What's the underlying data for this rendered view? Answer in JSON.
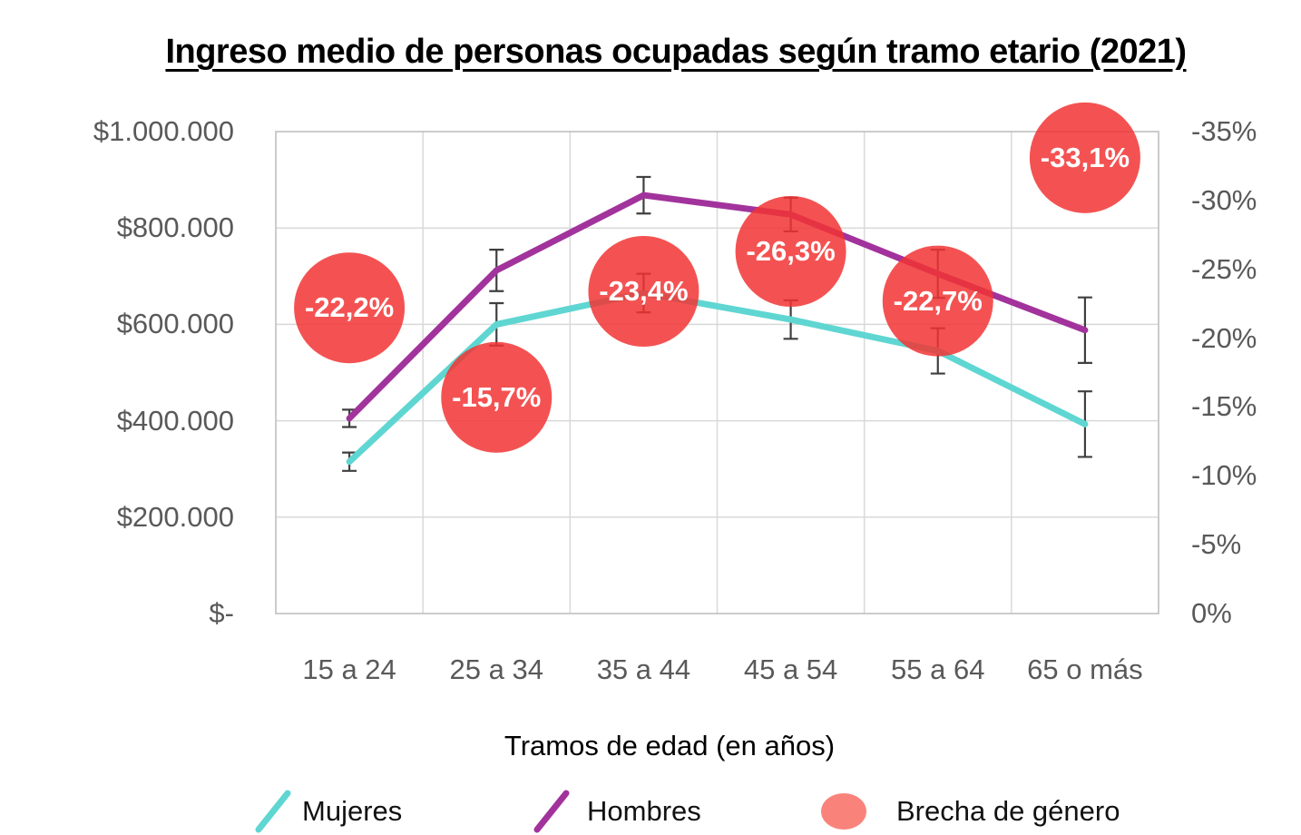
{
  "title": "Ingreso medio de personas ocupadas según tramo etario (2021)",
  "colors": {
    "mujeres": "#5FD6D2",
    "hombres": "#A2339C",
    "bubble": "#F23434",
    "bubble_opacity": 0.85,
    "legend_bubble": "#F9837B",
    "axis_text": "#595959",
    "gridline": "#D9D9D9",
    "plot_border": "#BFBFBF",
    "error_bar": "#3F3F3F"
  },
  "chart_data": {
    "type": "line",
    "title": "Ingreso medio de personas ocupadas según tramo etario (2021)",
    "xlabel": "Tramos de edad (en años)",
    "categories": [
      "15 a 24",
      "25 a 34",
      "35 a 44",
      "45 a 54",
      "55 a 64",
      "65 o más"
    ],
    "series": [
      {
        "name": "Mujeres",
        "axis": "left",
        "values": [
          315000,
          600000,
          665000,
          610000,
          545000,
          393000
        ],
        "error": [
          19000,
          44000,
          40000,
          40000,
          47000,
          68000
        ],
        "color_key": "mujeres"
      },
      {
        "name": "Hombres",
        "axis": "left",
        "values": [
          405000,
          712000,
          868000,
          828000,
          705000,
          588000
        ],
        "error": [
          18000,
          43000,
          38000,
          35000,
          50000,
          68000
        ],
        "color_key": "hombres"
      }
    ],
    "bubbles": {
      "name": "Brecha de género",
      "axis": "right",
      "values": [
        -22.2,
        -15.7,
        -23.4,
        -26.3,
        -22.7,
        -33.1
      ],
      "labels": [
        "-22,2%",
        "-15,7%",
        "-23,4%",
        "-26,3%",
        "-22,7%",
        "-33,1%"
      ],
      "radius_px": 61
    },
    "y_left": {
      "ticks": [
        "$1.000.000",
        "$800.000",
        "$600.000",
        "$400.000",
        "$200.000",
        "$-"
      ],
      "min": 0,
      "max": 1000000,
      "grid": true
    },
    "y_right": {
      "ticks": [
        "-35%",
        "-30%",
        "-25%",
        "-20%",
        "-15%",
        "-10%",
        "-5%",
        "0%"
      ],
      "min": -35,
      "max": 0
    },
    "legend": [
      {
        "label": "Mujeres",
        "marker": "line",
        "color_key": "mujeres"
      },
      {
        "label": "Hombres",
        "marker": "line",
        "color_key": "hombres"
      },
      {
        "label": "Brecha de género",
        "marker": "circle",
        "color_key": "legend_bubble"
      }
    ],
    "legend_position": "bottom"
  }
}
